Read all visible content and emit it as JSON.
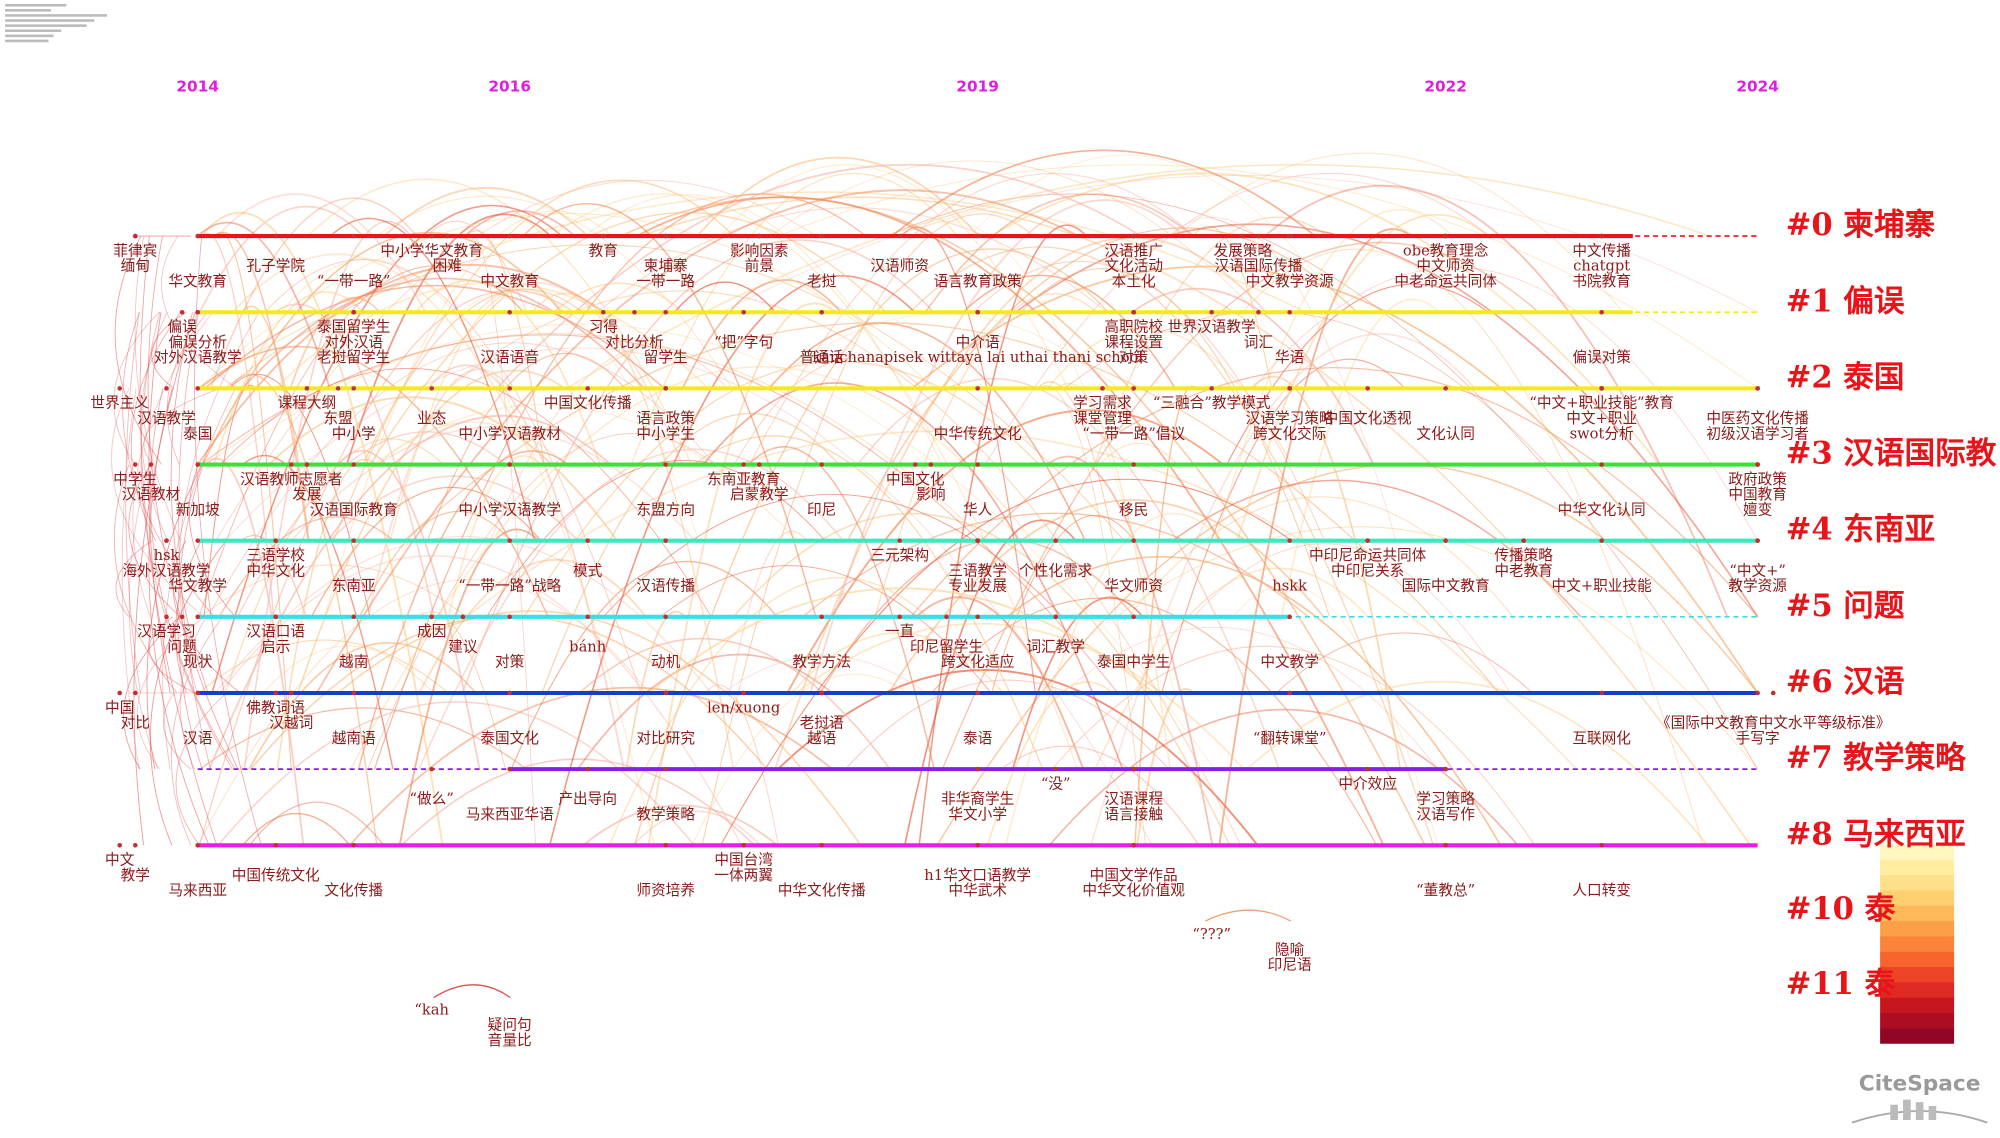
{
  "header": {
    "years": [
      2014,
      2016,
      2019,
      2022,
      2024
    ]
  },
  "year_range": [
    2014,
    2024
  ],
  "logo": "CiteSpace",
  "clusters": [
    {
      "label": "#0 柬埔寨",
      "color": "#e8141a",
      "period": [
        2014,
        2023.2
      ],
      "keywords": [
        [
          {
            "text": "菲律宾",
            "year": 2013.6
          },
          {
            "text": "中小学华文教育",
            "year": 2015.5
          },
          {
            "text": "教育",
            "year": 2016.6
          },
          {
            "text": "影响因素",
            "year": 2017.6
          },
          {
            "text": "汉语推广",
            "year": 2020
          },
          {
            "text": "发展策略",
            "year": 2020.7
          },
          {
            "text": "obe教育理念",
            "year": 2022
          },
          {
            "text": "中文传播",
            "year": 2023
          }
        ],
        [
          {
            "text": "缅甸",
            "year": 2013.6
          },
          {
            "text": "孔子学院",
            "year": 2014.5
          },
          {
            "text": "困难",
            "year": 2015.6
          },
          {
            "text": "柬埔寨",
            "year": 2017
          },
          {
            "text": "前景",
            "year": 2017.6
          },
          {
            "text": "汉语师资",
            "year": 2018.5
          },
          {
            "text": "文化活动",
            "year": 2020
          },
          {
            "text": "汉语国际传播",
            "year": 2020.8
          },
          {
            "text": "中文师资",
            "year": 2022
          },
          {
            "text": "chatgpt",
            "year": 2023
          }
        ],
        [
          {
            "text": "华文教育",
            "year": 2014
          },
          {
            "text": "“一带一路”",
            "year": 2015
          },
          {
            "text": "中文教育",
            "year": 2016
          },
          {
            "text": "一带一路",
            "year": 2017
          },
          {
            "text": "老挝",
            "year": 2018
          },
          {
            "text": "语言教育政策",
            "year": 2019
          },
          {
            "text": "本土化",
            "year": 2020
          },
          {
            "text": "中文教学资源",
            "year": 2021
          },
          {
            "text": "中老命运共同体",
            "year": 2022
          },
          {
            "text": "书院教育",
            "year": 2023
          }
        ]
      ]
    },
    {
      "label": "#1 偏误",
      "color": "#f5e81c",
      "period": [
        2014,
        2023.2
      ],
      "keywords": [
        [
          {
            "text": "偏误",
            "year": 2013.9
          },
          {
            "text": "泰国留学生",
            "year": 2015
          },
          {
            "text": "习得",
            "year": 2016.6
          },
          {
            "text": "高职院校",
            "year": 2020
          },
          {
            "text": "世界汉语教学",
            "year": 2020.5
          }
        ],
        [
          {
            "text": "偏误分析",
            "year": 2014
          },
          {
            "text": "对外汉语",
            "year": 2015
          },
          {
            "text": "对比分析",
            "year": 2016.8
          },
          {
            "text": "“把”字句",
            "year": 2017.5
          },
          {
            "text": "中介语",
            "year": 2019
          },
          {
            "text": "课程设置",
            "year": 2020
          },
          {
            "text": "词汇",
            "year": 2020.8
          }
        ],
        [
          {
            "text": "对外汉语教学",
            "year": 2014
          },
          {
            "text": "老挝留学生",
            "year": 2015
          },
          {
            "text": "汉语语音",
            "year": 2016
          },
          {
            "text": "留学生",
            "year": 2017
          },
          {
            "text": "普通话",
            "year": 2018
          },
          {
            "text": "kanchanapisek wittaya lai uthai thani school",
            "year": 2019
          },
          {
            "text": "对策",
            "year": 2020
          },
          {
            "text": "华语",
            "year": 2021
          },
          {
            "text": "偏误对策",
            "year": 2023
          }
        ]
      ]
    },
    {
      "label": "#2 泰国",
      "color": "#f5e81c",
      "period": [
        2014,
        2024
      ],
      "keywords": [
        [
          {
            "text": "世界主义",
            "year": 2013.5
          },
          {
            "text": "课程大纲",
            "year": 2014.7
          },
          {
            "text": "中国文化传播",
            "year": 2016.5
          },
          {
            "text": "学习需求",
            "year": 2019.8
          },
          {
            "text": "“三融合”教学模式",
            "year": 2020.5
          },
          {
            "text": "“中文+职业技能”教育",
            "year": 2023
          }
        ],
        [
          {
            "text": "汉语教学",
            "year": 2013.8
          },
          {
            "text": "东盟",
            "year": 2014.9
          },
          {
            "text": "业态",
            "year": 2015.5
          },
          {
            "text": "语言政策",
            "year": 2017
          },
          {
            "text": "课堂管理",
            "year": 2019.8
          },
          {
            "text": "汉语学习策略",
            "year": 2021
          },
          {
            "text": "中国文化透视",
            "year": 2021.5
          },
          {
            "text": "中文+职业",
            "year": 2023
          },
          {
            "text": "中医药文化传播",
            "year": 2024
          }
        ],
        [
          {
            "text": "泰国",
            "year": 2014
          },
          {
            "text": "中小学",
            "year": 2015
          },
          {
            "text": "中小学汉语教材",
            "year": 2016
          },
          {
            "text": "中小学生",
            "year": 2017
          },
          {
            "text": "中华传统文化",
            "year": 2019
          },
          {
            "text": "“一带一路”倡议",
            "year": 2020
          },
          {
            "text": "跨文化交际",
            "year": 2021
          },
          {
            "text": "文化认同",
            "year": 2022
          },
          {
            "text": "swot分析",
            "year": 2023
          },
          {
            "text": "初级汉语学习者",
            "year": 2024
          }
        ]
      ]
    },
    {
      "label": "#3 汉语国际教",
      "color": "#3ce03c",
      "period": [
        2014,
        2024
      ],
      "keywords": [
        [
          {
            "text": "中学生",
            "year": 2013.6
          },
          {
            "text": "汉语教师志愿者",
            "year": 2014.6
          },
          {
            "text": "东南亚教育",
            "year": 2017.5
          },
          {
            "text": "中国文化",
            "year": 2018.6
          },
          {
            "text": "政府政策",
            "year": 2024
          }
        ],
        [
          {
            "text": "汉语教材",
            "year": 2013.7
          },
          {
            "text": "发展",
            "year": 2014.7
          },
          {
            "text": "启蒙教学",
            "year": 2017.6
          },
          {
            "text": "影响",
            "year": 2018.7
          },
          {
            "text": "中国教育",
            "year": 2024
          }
        ],
        [
          {
            "text": "新加坡",
            "year": 2014
          },
          {
            "text": "汉语国际教育",
            "year": 2015
          },
          {
            "text": "中小学汉语教学",
            "year": 2016
          },
          {
            "text": "东盟方向",
            "year": 2017
          },
          {
            "text": "印尼",
            "year": 2018
          },
          {
            "text": "华人",
            "year": 2019
          },
          {
            "text": "移民",
            "year": 2020
          },
          {
            "text": "中华文化认同",
            "year": 2023
          },
          {
            "text": "嬗变",
            "year": 2024
          }
        ]
      ]
    },
    {
      "label": "#4 东南亚",
      "color": "#3ce8c0",
      "period": [
        2014,
        2024
      ],
      "keywords": [
        [
          {
            "text": "hsk",
            "year": 2013.8
          },
          {
            "text": "三语学校",
            "year": 2014.5
          },
          {
            "text": "三元架构",
            "year": 2018.5
          },
          {
            "text": "中印尼命运共同体",
            "year": 2021.5
          },
          {
            "text": "传播策略",
            "year": 2022.5
          }
        ],
        [
          {
            "text": "海外汉语教学",
            "year": 2013.8
          },
          {
            "text": "中华文化",
            "year": 2014.5
          },
          {
            "text": "模式",
            "year": 2016.5
          },
          {
            "text": "三语教学",
            "year": 2019
          },
          {
            "text": "个性化需求",
            "year": 2019.5
          },
          {
            "text": "中印尼关系",
            "year": 2021.5
          },
          {
            "text": "中老教育",
            "year": 2022.5
          },
          {
            "text": "“中文+”",
            "year": 2024
          }
        ],
        [
          {
            "text": "华文教学",
            "year": 2014
          },
          {
            "text": "东南亚",
            "year": 2015
          },
          {
            "text": "“一带一路”战略",
            "year": 2016
          },
          {
            "text": "汉语传播",
            "year": 2017
          },
          {
            "text": "专业发展",
            "year": 2019
          },
          {
            "text": "华文师资",
            "year": 2020
          },
          {
            "text": "hskk",
            "year": 2021
          },
          {
            "text": "国际中文教育",
            "year": 2022
          },
          {
            "text": "中文+职业技能",
            "year": 2023
          },
          {
            "text": "教学资源",
            "year": 2024
          }
        ]
      ]
    },
    {
      "label": "#5 问题",
      "color": "#3cdce8",
      "period": [
        2014,
        2021
      ],
      "keywords": [
        [
          {
            "text": "汉语学习",
            "year": 2013.8
          },
          {
            "text": "汉语口语",
            "year": 2014.5
          },
          {
            "text": "成因",
            "year": 2015.5
          },
          {
            "text": "一直",
            "year": 2018.5
          }
        ],
        [
          {
            "text": "问题",
            "year": 2013.9
          },
          {
            "text": "启示",
            "year": 2014.5
          },
          {
            "text": "建议",
            "year": 2015.7
          },
          {
            "text": "bánh",
            "year": 2016.5
          },
          {
            "text": "印尼留学生",
            "year": 2018.8
          },
          {
            "text": "词汇教学",
            "year": 2019.5
          }
        ],
        [
          {
            "text": "现状",
            "year": 2014
          },
          {
            "text": "越南",
            "year": 2015
          },
          {
            "text": "对策",
            "year": 2016
          },
          {
            "text": "动机",
            "year": 2017
          },
          {
            "text": "教学方法",
            "year": 2018
          },
          {
            "text": "跨文化适应",
            "year": 2019
          },
          {
            "text": "泰国中学生",
            "year": 2020
          },
          {
            "text": "中文教学",
            "year": 2021
          }
        ]
      ]
    },
    {
      "label": "#6 汉语",
      "color": "#1a3ccc",
      "period": [
        2014,
        2024
      ],
      "keywords": [
        [
          {
            "text": "中国",
            "year": 2013.5
          },
          {
            "text": "佛教词语",
            "year": 2014.5
          },
          {
            "text": "len/xuong",
            "year": 2017.5
          }
        ],
        [
          {
            "text": "对比",
            "year": 2013.6
          },
          {
            "text": "汉越词",
            "year": 2014.6
          },
          {
            "text": "老挝语",
            "year": 2018
          },
          {
            "text": "《国际中文教育中文水平等级标准》",
            "year": 2024.1
          }
        ],
        [
          {
            "text": "汉语",
            "year": 2014
          },
          {
            "text": "越南语",
            "year": 2015
          },
          {
            "text": "泰国文化",
            "year": 2016
          },
          {
            "text": "对比研究",
            "year": 2017
          },
          {
            "text": "越语",
            "year": 2018
          },
          {
            "text": "泰语",
            "year": 2019
          },
          {
            "text": "“翻转课堂”",
            "year": 2021
          },
          {
            "text": "互联网化",
            "year": 2023
          },
          {
            "text": "手写字",
            "year": 2024
          }
        ]
      ]
    },
    {
      "label": "#7 教学策略",
      "color": "#8a1ee0",
      "period": [
        2016,
        2022
      ],
      "keywords": [
        [
          {
            "text": "“没”",
            "year": 2019.5
          },
          {
            "text": "中介效应",
            "year": 2021.5
          }
        ],
        [
          {
            "text": "“做么”",
            "year": 2015.5
          },
          {
            "text": "产出导向",
            "year": 2016.5
          },
          {
            "text": "非华裔学生",
            "year": 2019
          },
          {
            "text": "汉语课程",
            "year": 2020
          },
          {
            "text": "学习策略",
            "year": 2022
          }
        ],
        [
          {
            "text": "马来西亚华语",
            "year": 2016
          },
          {
            "text": "教学策略",
            "year": 2017
          },
          {
            "text": "华文小学",
            "year": 2019
          },
          {
            "text": "语言接触",
            "year": 2020
          },
          {
            "text": "汉语写作",
            "year": 2022
          }
        ]
      ]
    },
    {
      "label": "#8 马来西亚",
      "color": "#e81ee0",
      "period": [
        2014,
        2024
      ],
      "keywords": [
        [
          {
            "text": "中文",
            "year": 2013.5
          },
          {
            "text": "中国台湾",
            "year": 2017.5
          }
        ],
        [
          {
            "text": "教学",
            "year": 2013.6
          },
          {
            "text": "中国传统文化",
            "year": 2014.5
          },
          {
            "text": "一体两翼",
            "year": 2017.5
          },
          {
            "text": "h1华文口语教学",
            "year": 2019
          },
          {
            "text": "中国文学作品",
            "year": 2020
          }
        ],
        [
          {
            "text": "马来西亚",
            "year": 2014
          },
          {
            "text": "文化传播",
            "year": 2015
          },
          {
            "text": "师资培养",
            "year": 2017
          },
          {
            "text": "中华文化传播",
            "year": 2018
          },
          {
            "text": "中华武术",
            "year": 2019
          },
          {
            "text": "中华文化价值观",
            "year": 2020
          },
          {
            "text": "“董教总”",
            "year": 2022
          },
          {
            "text": "人口转变",
            "year": 2023
          }
        ]
      ]
    },
    {
      "label": "#10 泰",
      "keywords": [
        [
          {
            "text": "“???”",
            "year": 2020.5
          }
        ],
        [
          {
            "text": "隐喻",
            "year": 2021
          }
        ],
        [
          {
            "text": "印尼语",
            "year": 2021
          }
        ]
      ]
    },
    {
      "label": "#11 泰",
      "keywords": [
        [
          {
            "text": "“kah",
            "year": 2015.5
          }
        ],
        [
          {
            "text": "疑问句",
            "year": 2016
          }
        ],
        [
          {
            "text": "音量比",
            "year": 2016
          }
        ]
      ]
    }
  ]
}
